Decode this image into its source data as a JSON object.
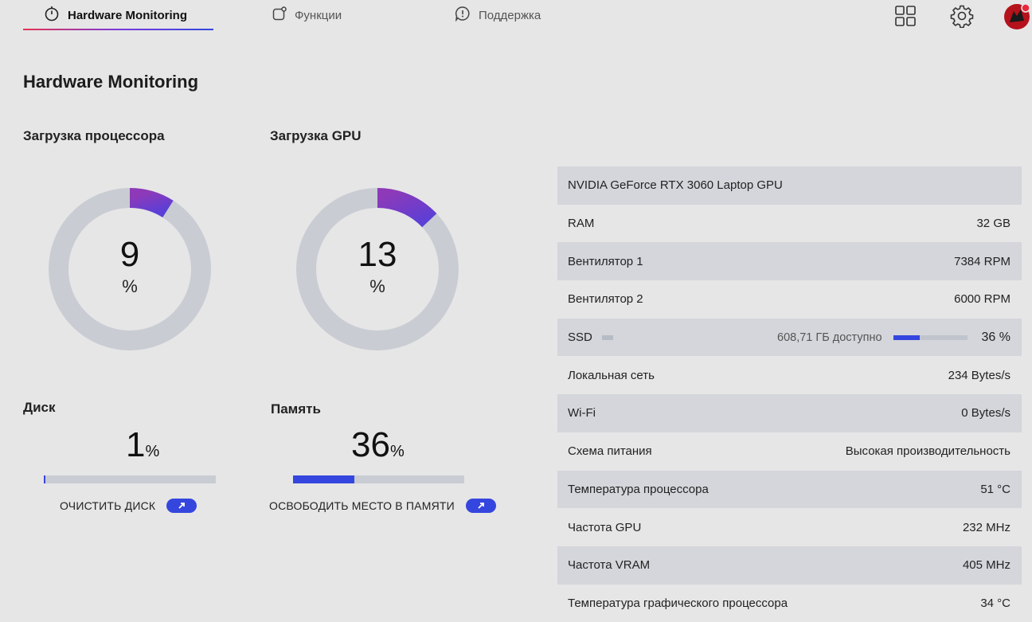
{
  "nav": {
    "tabs": [
      {
        "label": "Hardware Monitoring",
        "icon": "timer-icon",
        "active": true
      },
      {
        "label": "Функции",
        "icon": "feature-icon",
        "active": false
      },
      {
        "label": "Поддержка",
        "icon": "support-icon",
        "active": false
      }
    ],
    "right_icons": [
      "apps-grid-icon",
      "gear-icon",
      "avatar"
    ]
  },
  "page_title": "Hardware Monitoring",
  "cpu": {
    "label": "Загрузка процессора",
    "value": "9",
    "unit": "%",
    "percent": 9
  },
  "gpu": {
    "label": "Загрузка GPU",
    "value": "13",
    "unit": "%",
    "percent": 13
  },
  "disk": {
    "label": "Диск",
    "value": "1",
    "unit": "%",
    "percent": 1,
    "action": "ОЧИСТИТЬ ДИСК"
  },
  "memory": {
    "label": "Память",
    "value": "36",
    "unit": "%",
    "percent": 36,
    "action": "ОСВОБОДИТЬ МЕСТО В ПАМЯТИ"
  },
  "colors": {
    "accent": "#3546de",
    "gauge_start": "#8e3ab8",
    "gauge_end": "#5b3fd6",
    "track": "#c9ccd3",
    "row_shade": "#d4d6db"
  },
  "info": {
    "gpu_name": "NVIDIA GeForce RTX 3060 Laptop GPU",
    "rows": [
      {
        "label": "RAM",
        "value": "32 GB"
      },
      {
        "label": "Вентилятор 1",
        "value": "7384 RPM"
      },
      {
        "label": "Вентилятор 2",
        "value": "6000 RPM"
      },
      {
        "label": "SSD",
        "available": "608,71 ГБ доступно",
        "value": "36 %",
        "percent": 36
      },
      {
        "label": "Локальная сеть",
        "value": "234 Bytes/s"
      },
      {
        "label": "Wi-Fi",
        "value": "0 Bytes/s"
      },
      {
        "label": "Схема питания",
        "value": "Высокая производительность"
      },
      {
        "label": "Температура процессора",
        "value": "51 °C"
      },
      {
        "label": "Частота GPU",
        "value": "232 MHz"
      },
      {
        "label": "Частота VRAM",
        "value": "405 MHz"
      },
      {
        "label": "Температура графического процессора",
        "value": "34 °C"
      }
    ]
  }
}
